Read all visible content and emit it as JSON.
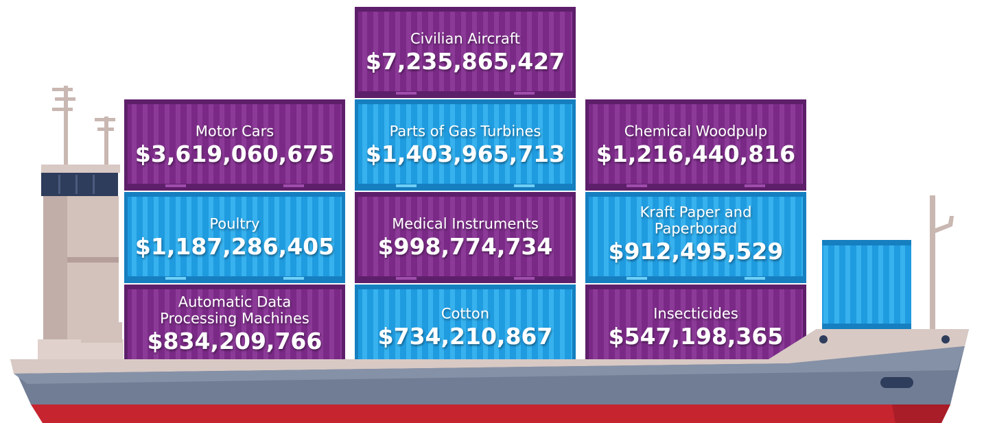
{
  "containers": [
    {
      "label": [
        "Civilian Aircraft"
      ],
      "value": "$7,235,865,427"
    },
    {
      "label": [
        "Motor Cars"
      ],
      "value": "$3,619,060,675"
    },
    {
      "label": [
        "Parts of Gas Turbines"
      ],
      "value": "$1,403,965,713"
    },
    {
      "label": [
        "Chemical Woodpulp"
      ],
      "value": "$1,216,440,816"
    },
    {
      "label": [
        "Poultry"
      ],
      "value": "$1,187,286,405"
    },
    {
      "label": [
        "Medical Instruments"
      ],
      "value": "$998,774,734"
    },
    {
      "label": [
        "Kraft Paper and",
        "Paperborad"
      ],
      "value": "$912,495,529"
    },
    {
      "label": [
        "Automatic Data",
        "Processing Machines"
      ],
      "value": "$834,209,766"
    },
    {
      "label": [
        "Cotton"
      ],
      "value": "$734,210,867"
    },
    {
      "label": [
        "Insecticides"
      ],
      "value": "$547,198,365"
    }
  ]
}
